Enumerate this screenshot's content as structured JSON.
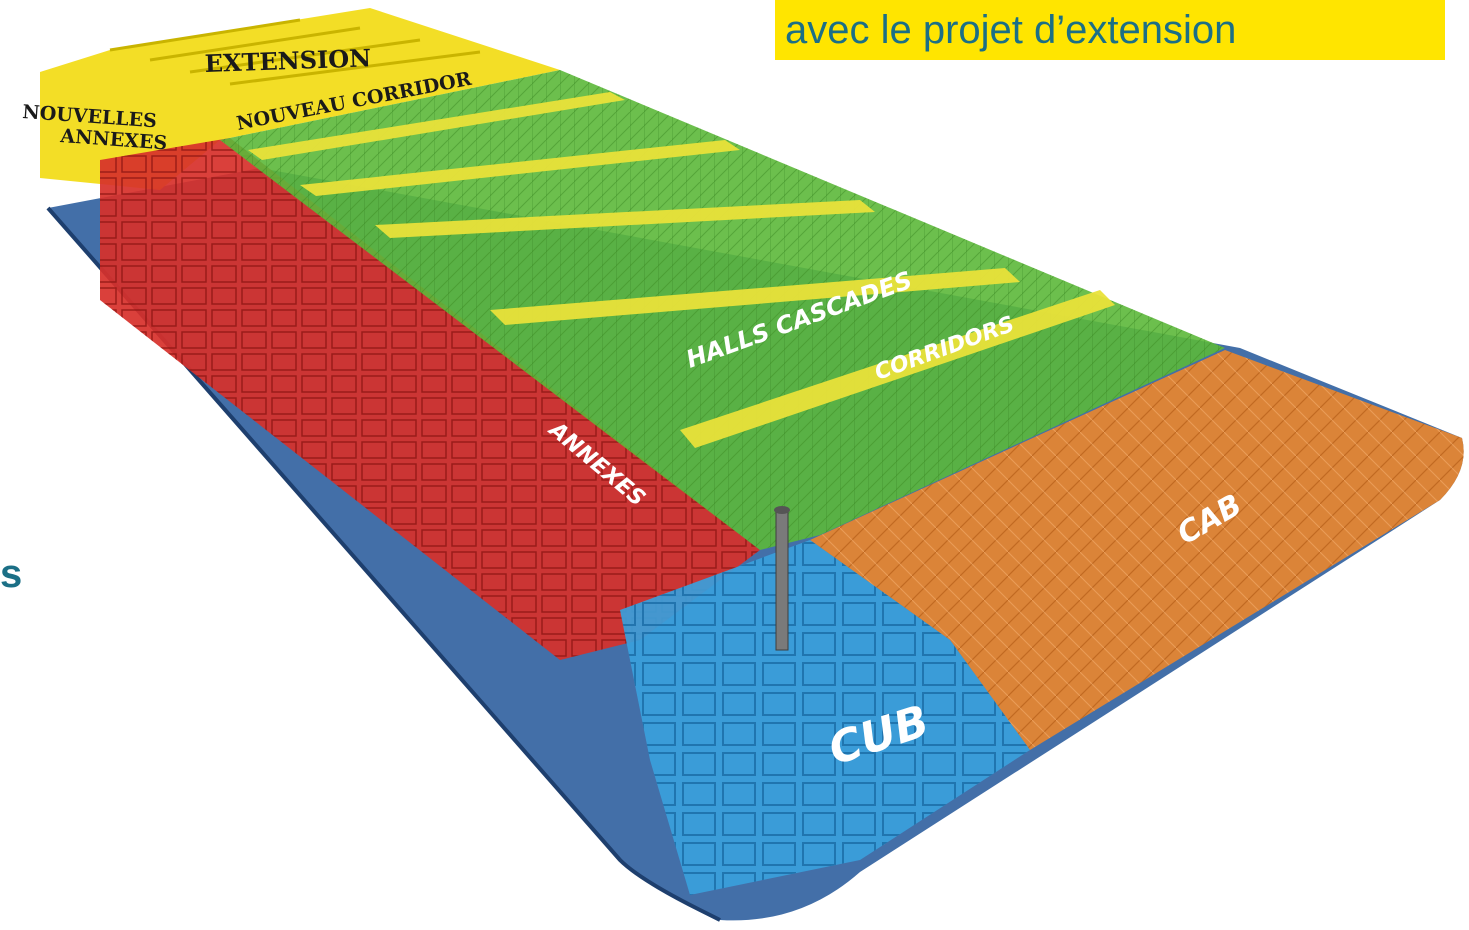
{
  "banner": {
    "text": "avec le projet d’extension",
    "background": "#ffe500",
    "text_color": "#1b6f86"
  },
  "edge_text": "s",
  "labels": {
    "extension": "EXTENSION",
    "nouveau_corridor": "NOUVEAU CORRIDOR",
    "nouvelles": "NOUVELLES",
    "annexes_new": "ANNEXES",
    "halls_cascades": "HALLS CASCADES",
    "corridors": "CORRIDORS",
    "annexes": "ANNEXES",
    "cab": "CAB",
    "cub": "CUB"
  },
  "colors": {
    "extension_yellow": "#f2dc1a",
    "halls_green": "#5cb83a",
    "annexes_red": "#d7302a",
    "cub_blue": "#3aa0dc",
    "cab_orange": "#e8862f",
    "ground_blue": "#2f5f9e"
  }
}
